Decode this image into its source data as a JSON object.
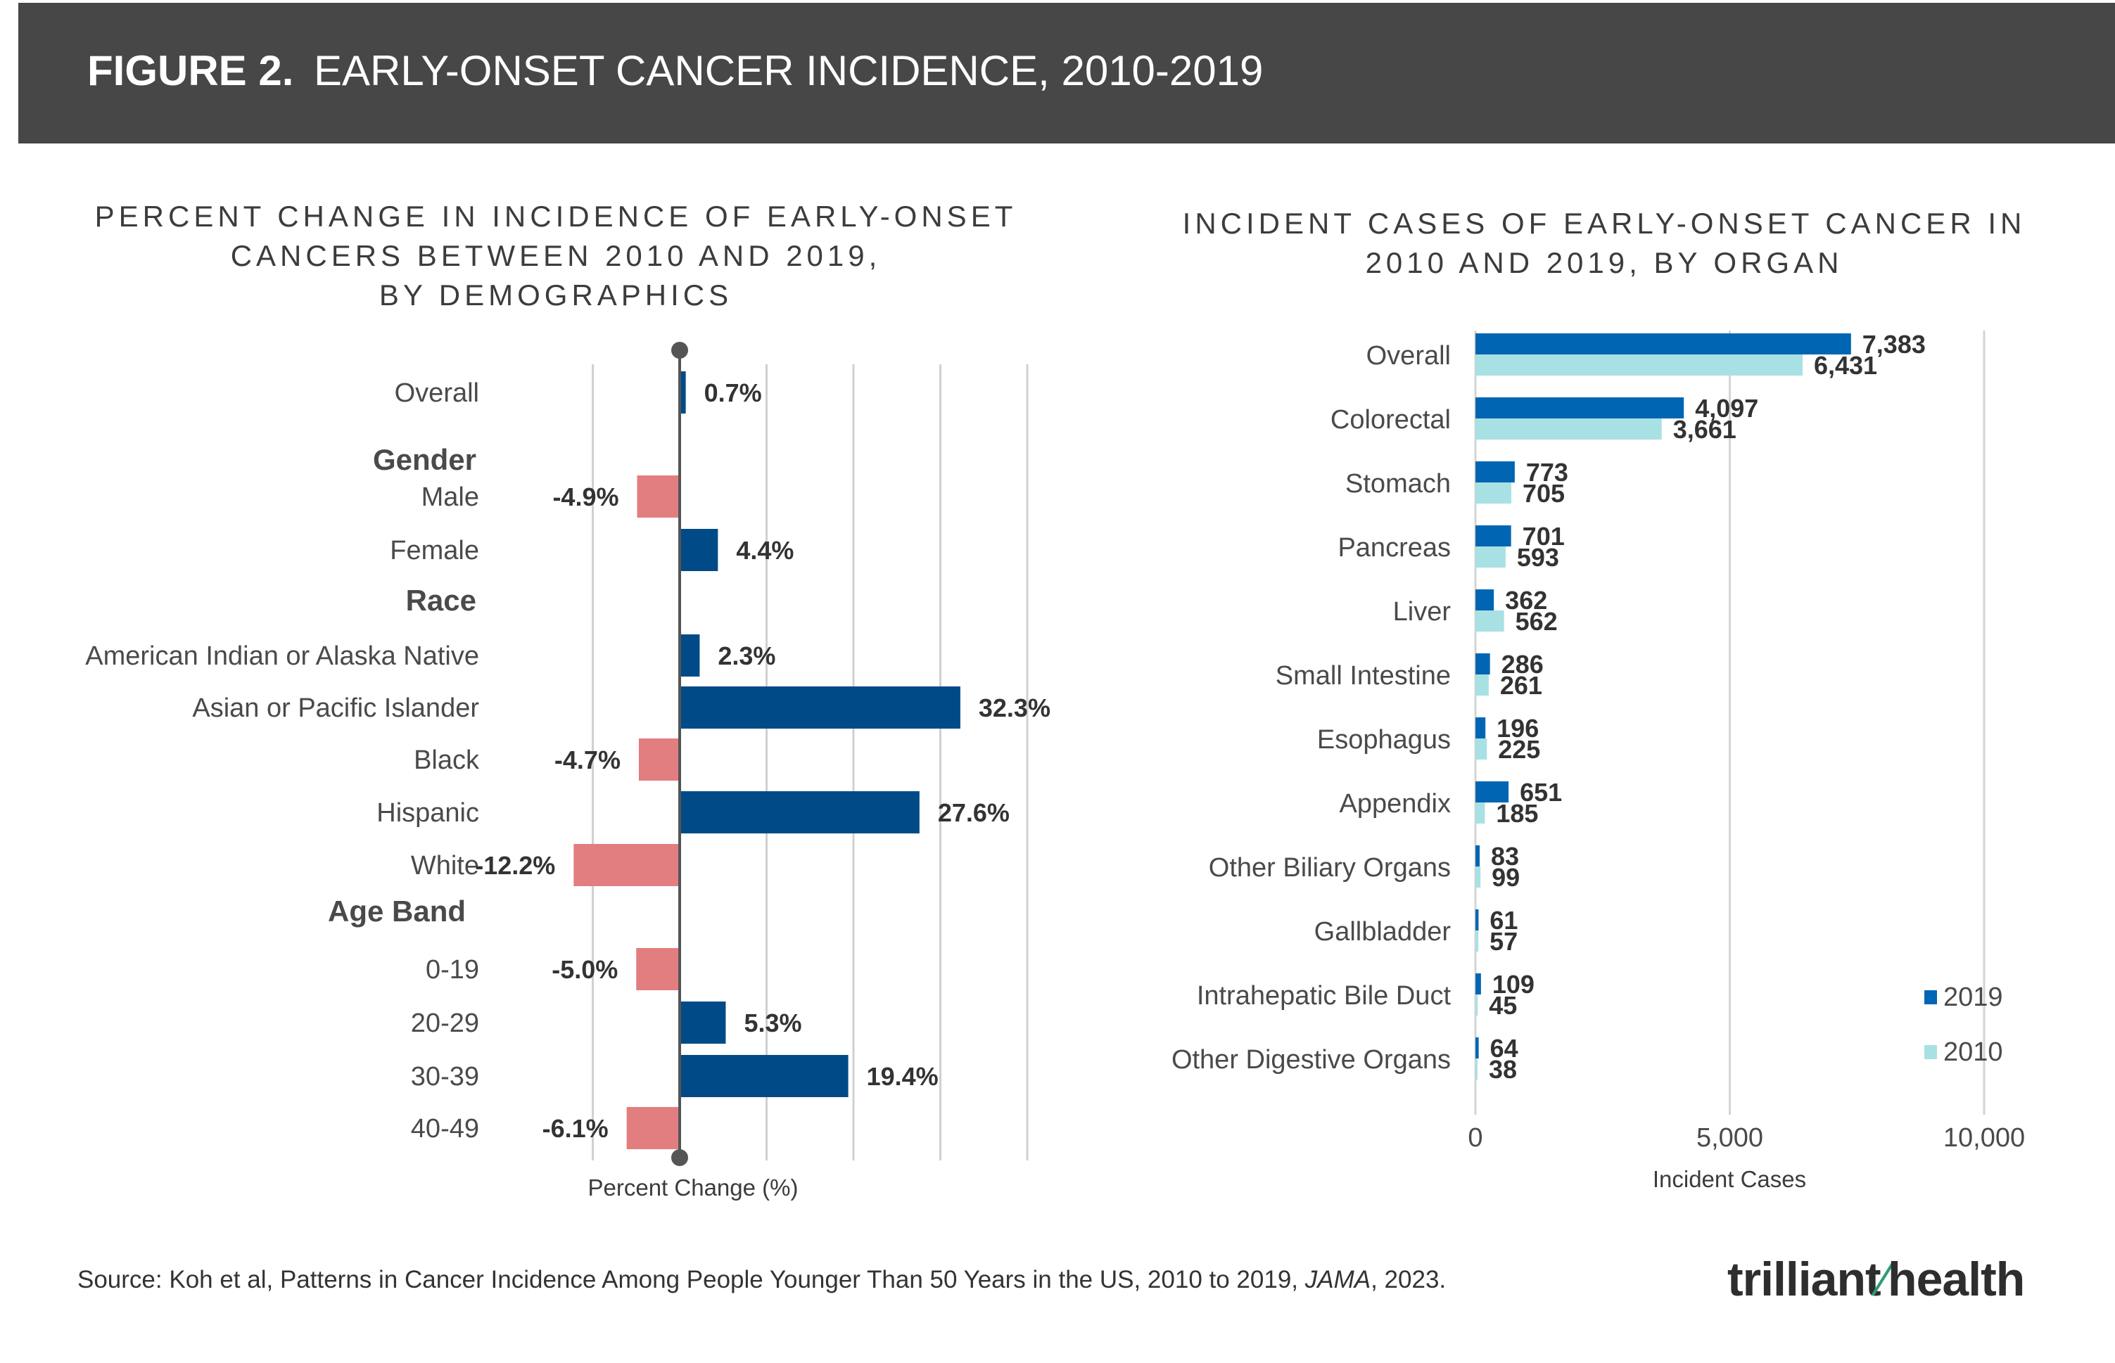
{
  "header": {
    "figure_number": "FIGURE 2.",
    "title": "EARLY-ONSET CANCER INCIDENCE, 2010-2019"
  },
  "source": {
    "prefix": "Source: Koh et al, Patterns in Cancer Incidence Among People Younger Than 50 Years in the US, 2010 to 2019, ",
    "journal": "JAMA",
    "suffix": ", 2023."
  },
  "logo": {
    "part1": "trilliant",
    "part2": "health"
  },
  "colors": {
    "left_positive": "#004B87",
    "left_negative": "#E27D80",
    "right_2019": "#0066B3",
    "right_2010": "#A8E1E3",
    "header_bg": "#474747"
  },
  "chart_data": [
    {
      "type": "bar",
      "orientation": "horizontal",
      "title_lines": [
        "PERCENT CHANGE IN INCIDENCE OF EARLY-ONSET",
        "CANCERS BETWEEN 2010 AND 2019,",
        "BY DEMOGRAPHICS"
      ],
      "xlabel": "Percent Change (%)",
      "xlim": [
        -20,
        40
      ],
      "grid": true,
      "groups": [
        "Gender",
        "Race",
        "Age Band"
      ],
      "rows": [
        {
          "label": "Overall",
          "value": 0.7,
          "display": "0.7%"
        },
        {
          "label": "Gender",
          "is_group": true
        },
        {
          "label": "Male",
          "value": -4.9,
          "display": "-4.9%"
        },
        {
          "label": "Female",
          "value": 4.4,
          "display": "4.4%"
        },
        {
          "label": "Race",
          "is_group": true
        },
        {
          "label": "American Indian or Alaska Native",
          "value": 2.3,
          "display": "2.3%"
        },
        {
          "label": "Asian or Pacific Islander",
          "value": 32.3,
          "display": "32.3%"
        },
        {
          "label": "Black",
          "value": -4.7,
          "display": "-4.7%"
        },
        {
          "label": "Hispanic",
          "value": 27.6,
          "display": "27.6%"
        },
        {
          "label": "White",
          "value": -12.2,
          "display": "-12.2%"
        },
        {
          "label": "Age Band",
          "is_group": true
        },
        {
          "label": "0-19",
          "value": -5.0,
          "display": "-5.0%"
        },
        {
          "label": "20-29",
          "value": 5.3,
          "display": "5.3%"
        },
        {
          "label": "30-39",
          "value": 19.4,
          "display": "19.4%"
        },
        {
          "label": "40-49",
          "value": -6.1,
          "display": "-6.1%"
        }
      ]
    },
    {
      "type": "bar",
      "orientation": "horizontal",
      "title_lines": [
        "INCIDENT CASES OF EARLY-ONSET CANCER IN",
        "2010 AND 2019, BY ORGAN"
      ],
      "xlabel": "Incident Cases",
      "xlim": [
        0,
        10000
      ],
      "xticks": [
        {
          "value": 0,
          "label": "0"
        },
        {
          "value": 5000,
          "label": "5,000"
        },
        {
          "value": 10000,
          "label": "10,000"
        }
      ],
      "grid": true,
      "legend_position": "right",
      "categories": [
        "Overall",
        "Colorectal",
        "Stomach",
        "Pancreas",
        "Liver",
        "Small Intestine",
        "Esophagus",
        "Appendix",
        "Other Biliary Organs",
        "Gallbladder",
        "Intrahepatic Bile Duct",
        "Other Digestive Organs"
      ],
      "series": [
        {
          "name": "2019",
          "values": [
            7383,
            4097,
            773,
            701,
            362,
            286,
            196,
            651,
            83,
            61,
            109,
            64
          ],
          "labels": [
            "7,383",
            "4,097",
            "773",
            "701",
            "362",
            "286",
            "196",
            "651",
            "83",
            "61",
            "109",
            "64"
          ]
        },
        {
          "name": "2010",
          "values": [
            6431,
            3661,
            705,
            593,
            562,
            261,
            225,
            185,
            99,
            57,
            45,
            38
          ],
          "labels": [
            "6,431",
            "3,661",
            "705",
            "593",
            "562",
            "261",
            "225",
            "185",
            "99",
            "57",
            "45",
            "38"
          ]
        }
      ]
    }
  ]
}
